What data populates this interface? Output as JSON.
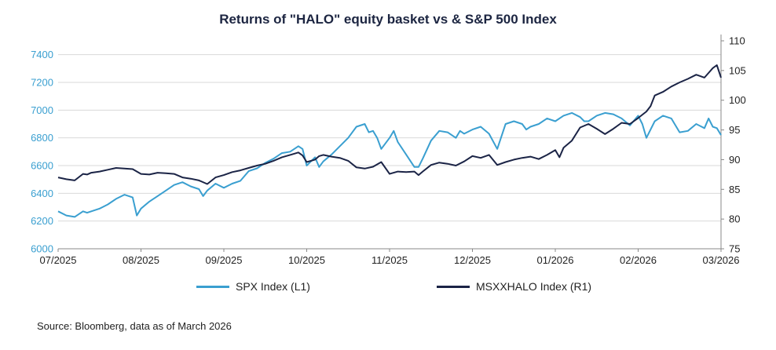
{
  "chart_data": {
    "type": "line",
    "title": "Returns of \"HALO\" equity basket vs & S&P 500 Index",
    "x_ticks": [
      "07/2025",
      "08/2025",
      "09/2025",
      "10/2025",
      "11/2025",
      "12/2025",
      "01/2026",
      "02/2026",
      "03/2026"
    ],
    "y_left": {
      "ticks": [
        6000,
        6200,
        6400,
        6600,
        6800,
        7000,
        7200,
        7400
      ],
      "ylim": [
        6000,
        7500
      ]
    },
    "y_right": {
      "ticks": [
        75,
        80,
        85,
        90,
        95,
        100,
        105,
        110
      ],
      "ylim": [
        75,
        110
      ]
    },
    "grid": "horizontal",
    "legend_position": "bottom",
    "colors": {
      "spx": "#3a9fd0",
      "halo": "#1b2446"
    },
    "series": [
      {
        "name": "SPX Index (L1)",
        "axis": "left",
        "x": [
          0,
          0.1,
          0.2,
          0.3,
          0.35,
          0.4,
          0.5,
          0.6,
          0.7,
          0.8,
          0.9,
          0.95,
          1.0,
          1.1,
          1.2,
          1.3,
          1.4,
          1.5,
          1.6,
          1.7,
          1.75,
          1.8,
          1.9,
          2.0,
          2.1,
          2.2,
          2.3,
          2.4,
          2.5,
          2.6,
          2.7,
          2.8,
          2.9,
          2.95,
          3.0,
          3.1,
          3.15,
          3.2,
          3.3,
          3.4,
          3.5,
          3.6,
          3.7,
          3.75,
          3.8,
          3.85,
          3.9,
          4.0,
          4.05,
          4.1,
          4.2,
          4.3,
          4.35,
          4.4,
          4.5,
          4.6,
          4.7,
          4.8,
          4.85,
          4.9,
          5.0,
          5.1,
          5.2,
          5.3,
          5.4,
          5.5,
          5.6,
          5.65,
          5.7,
          5.8,
          5.9,
          6.0,
          6.1,
          6.2,
          6.3,
          6.35,
          6.4,
          6.5,
          6.6,
          6.7,
          6.8,
          6.9,
          7.0,
          7.05,
          7.1,
          7.2,
          7.3,
          7.4,
          7.5,
          7.6,
          7.7,
          7.8,
          7.85,
          7.9,
          7.95,
          8.0
        ],
        "values": [
          6270,
          6240,
          6230,
          6270,
          6260,
          6270,
          6290,
          6320,
          6360,
          6390,
          6370,
          6240,
          6290,
          6340,
          6380,
          6420,
          6460,
          6480,
          6450,
          6430,
          6380,
          6420,
          6470,
          6440,
          6470,
          6490,
          6560,
          6580,
          6620,
          6650,
          6690,
          6700,
          6740,
          6720,
          6600,
          6660,
          6590,
          6630,
          6680,
          6740,
          6800,
          6880,
          6900,
          6840,
          6850,
          6800,
          6720,
          6800,
          6850,
          6770,
          6680,
          6590,
          6590,
          6650,
          6780,
          6850,
          6840,
          6800,
          6850,
          6830,
          6860,
          6880,
          6830,
          6720,
          6900,
          6920,
          6900,
          6860,
          6880,
          6900,
          6940,
          6920,
          6960,
          6980,
          6950,
          6920,
          6920,
          6960,
          6980,
          6970,
          6940,
          6890,
          6960,
          6900,
          6800,
          6920,
          6960,
          6940,
          6840,
          6850,
          6900,
          6870,
          6940,
          6880,
          6870,
          6820
        ]
      },
      {
        "name": "MSXXHALO Index (R1)",
        "axis": "right",
        "x": [
          0,
          0.1,
          0.2,
          0.3,
          0.35,
          0.4,
          0.5,
          0.6,
          0.7,
          0.8,
          0.9,
          1.0,
          1.1,
          1.2,
          1.3,
          1.4,
          1.5,
          1.6,
          1.7,
          1.8,
          1.9,
          2.0,
          2.1,
          2.2,
          2.3,
          2.4,
          2.5,
          2.6,
          2.7,
          2.8,
          2.9,
          2.95,
          3.0,
          3.1,
          3.15,
          3.2,
          3.3,
          3.4,
          3.5,
          3.6,
          3.7,
          3.8,
          3.9,
          4.0,
          4.1,
          4.2,
          4.3,
          4.35,
          4.4,
          4.5,
          4.6,
          4.7,
          4.8,
          4.9,
          5.0,
          5.1,
          5.2,
          5.3,
          5.4,
          5.5,
          5.6,
          5.7,
          5.8,
          5.9,
          6.0,
          6.05,
          6.1,
          6.2,
          6.3,
          6.4,
          6.5,
          6.6,
          6.7,
          6.8,
          6.9,
          7.0,
          7.1,
          7.15,
          7.2,
          7.3,
          7.4,
          7.5,
          7.6,
          7.7,
          7.8,
          7.85,
          7.9,
          7.95,
          8.0
        ],
        "values": [
          87.0,
          86.7,
          86.5,
          87.6,
          87.5,
          87.8,
          88.0,
          88.3,
          88.6,
          88.5,
          88.4,
          87.6,
          87.5,
          87.8,
          87.7,
          87.6,
          87.0,
          86.8,
          86.5,
          85.9,
          87.0,
          87.4,
          87.9,
          88.2,
          88.6,
          89.0,
          89.3,
          89.8,
          90.4,
          90.8,
          91.2,
          90.7,
          89.6,
          90.0,
          90.6,
          90.8,
          90.5,
          90.3,
          89.8,
          88.7,
          88.5,
          88.8,
          89.6,
          87.6,
          88.0,
          87.9,
          88.0,
          87.4,
          88.0,
          89.1,
          89.5,
          89.3,
          89.0,
          89.7,
          90.6,
          90.3,
          90.8,
          89.1,
          89.6,
          90.0,
          90.3,
          90.5,
          90.1,
          90.8,
          91.6,
          90.4,
          92.0,
          93.2,
          95.4,
          96.0,
          95.2,
          94.3,
          95.2,
          96.2,
          96.0,
          97.0,
          98.1,
          99.0,
          100.8,
          101.4,
          102.3,
          103.0,
          103.6,
          104.3,
          103.8,
          104.6,
          105.4,
          105.9,
          103.8
        ]
      }
    ]
  },
  "source": "Source: Bloomberg, data as of March 2026"
}
